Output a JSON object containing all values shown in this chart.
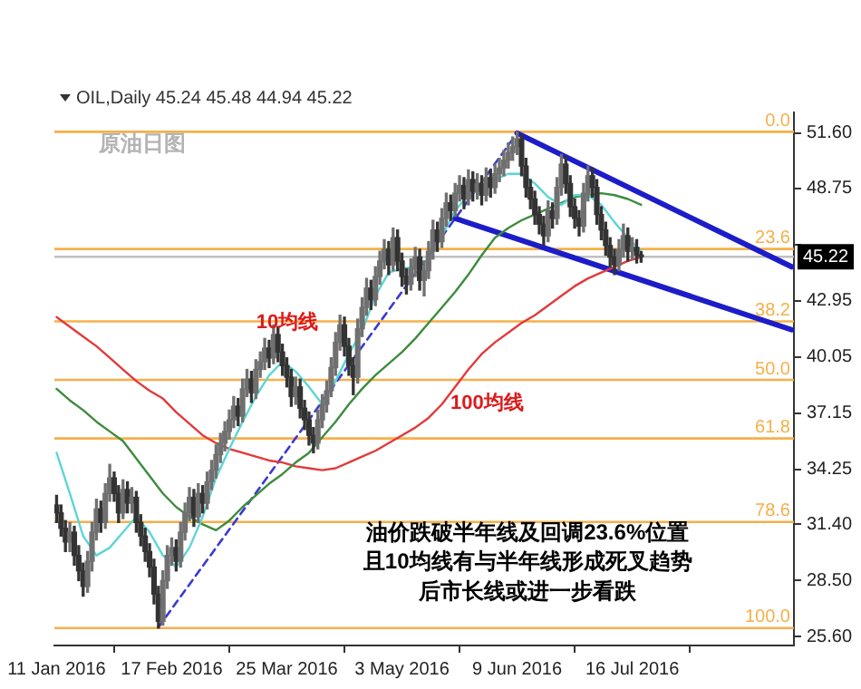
{
  "chart_data": {
    "type": "candlestick",
    "subtitle": "OIL,Daily 45.24 45.48 44.94 45.22",
    "colors": [
      "#333333",
      "#333333",
      "#333333",
      "#707070",
      "#333333",
      "#333333",
      "#333333",
      "#707070",
      "#707070",
      "#707070",
      "#333333",
      "#707070",
      "#707070",
      "#333333",
      "#333333",
      "#707070",
      "#333333",
      "#707070",
      "#333333",
      "#333333",
      "#333333",
      "#333333",
      "#333333",
      "#333333",
      "#707070",
      "#707070",
      "#707070",
      "#333333",
      "#707070",
      "#707070",
      "#707070",
      "#333333",
      "#707070",
      "#333333",
      "#707070",
      "#707070",
      "#707070",
      "#707070",
      "#707070",
      "#707070",
      "#707070",
      "#333333",
      "#707070",
      "#707070",
      "#333333",
      "#707070",
      "#707070",
      "#707070",
      "#333333",
      "#707070",
      "#333333",
      "#333333",
      "#333333",
      "#333333",
      "#707070",
      "#333333",
      "#333333",
      "#333333",
      "#333333",
      "#707070",
      "#707070",
      "#707070",
      "#707070",
      "#707070",
      "#707070",
      "#333333",
      "#333333",
      "#333333",
      "#707070",
      "#707070",
      "#707070",
      "#333333",
      "#707070",
      "#707070",
      "#707070",
      "#333333",
      "#707070",
      "#333333",
      "#333333",
      "#333333",
      "#707070",
      "#707070",
      "#333333",
      "#707070",
      "#707070",
      "#707070",
      "#333333",
      "#707070",
      "#707070",
      "#333333",
      "#707070",
      "#707070",
      "#333333",
      "#707070",
      "#333333",
      "#707070",
      "#333333",
      "#707070",
      "#333333",
      "#707070",
      "#707070",
      "#707070",
      "#707070",
      "#707070",
      "#707070",
      "#333333",
      "#333333",
      "#333333",
      "#333333",
      "#333333",
      "#333333",
      "#707070",
      "#333333",
      "#707070",
      "#707070",
      "#333333",
      "#333333",
      "#333333",
      "#333333",
      "#707070",
      "#707070",
      "#333333",
      "#333333",
      "#333333",
      "#333333",
      "#333333",
      "#333333",
      "#707070",
      "#707070",
      "#333333",
      "#707070",
      "#333333",
      "#333333",
      null,
      null,
      null,
      null,
      null,
      null,
      null,
      null,
      null,
      null,
      null,
      null,
      null,
      null,
      null,
      null,
      null,
      null,
      null,
      null,
      null,
      null,
      null,
      null,
      null,
      null,
      null,
      null,
      null,
      null,
      null,
      null,
      null,
      null
    ],
    "categories": [
      "11 Jan 2016",
      null,
      null,
      null,
      null,
      null,
      null,
      null,
      null,
      null,
      null,
      null,
      null,
      null,
      null,
      null,
      null,
      null,
      null,
      null,
      null,
      null,
      null,
      null,
      null,
      null,
      "17 Feb 2016",
      null,
      null,
      null,
      null,
      null,
      null,
      null,
      null,
      null,
      null,
      null,
      null,
      null,
      null,
      null,
      null,
      null,
      null,
      null,
      null,
      null,
      null,
      null,
      null,
      null,
      "25 Mar 2016",
      null,
      null,
      null,
      null,
      null,
      null,
      null,
      null,
      null,
      null,
      null,
      null,
      null,
      null,
      null,
      null,
      null,
      null,
      null,
      null,
      null,
      null,
      null,
      null,
      null,
      "3 May 2016",
      null,
      null,
      null,
      null,
      null,
      null,
      null,
      null,
      null,
      null,
      null,
      null,
      null,
      null,
      null,
      null,
      null,
      null,
      null,
      null,
      null,
      null,
      null,
      null,
      null,
      "9 Jun 2016",
      null,
      null,
      null,
      null,
      null,
      null,
      null,
      null,
      null,
      null,
      null,
      null,
      null,
      null,
      null,
      null,
      null,
      null,
      null,
      null,
      null,
      null,
      null,
      null,
      null,
      "16 Jul 2016",
      null,
      null,
      null,
      null,
      null,
      null,
      null,
      null,
      null,
      null,
      null,
      null,
      null,
      null,
      null,
      null,
      null,
      null,
      null,
      null,
      null,
      null,
      null,
      null,
      null,
      null,
      null,
      null,
      null,
      null,
      null,
      null,
      null,
      null,
      null,
      null
    ],
    "ohlc": [
      [
        32.4,
        32.9,
        31.5,
        32.0
      ],
      [
        32.0,
        32.4,
        30.8,
        31.2
      ],
      [
        31.2,
        31.6,
        30.0,
        30.5
      ],
      [
        30.5,
        31.5,
        30.0,
        31.0
      ],
      [
        31.0,
        31.3,
        29.3,
        29.8
      ],
      [
        29.8,
        30.3,
        28.5,
        29.0
      ],
      [
        29.0,
        29.4,
        27.7,
        28.2
      ],
      [
        28.2,
        30.0,
        27.9,
        29.5
      ],
      [
        29.5,
        31.5,
        29.0,
        31.0
      ],
      [
        31.0,
        32.7,
        30.6,
        32.2
      ],
      [
        32.2,
        32.6,
        31.0,
        31.5
      ],
      [
        31.5,
        33.5,
        31.2,
        33.0
      ],
      [
        33.0,
        34.5,
        32.6,
        33.8
      ],
      [
        33.8,
        34.1,
        32.6,
        33.0
      ],
      [
        33.0,
        33.4,
        31.5,
        32.0
      ],
      [
        32.0,
        33.7,
        31.7,
        33.2
      ],
      [
        33.2,
        33.6,
        32.0,
        32.5
      ],
      [
        32.5,
        33.3,
        32.0,
        32.8
      ],
      [
        32.8,
        33.1,
        31.0,
        31.5
      ],
      [
        31.5,
        31.9,
        30.3,
        30.8
      ],
      [
        30.8,
        31.2,
        29.5,
        30.0
      ],
      [
        30.0,
        30.4,
        28.7,
        29.2
      ],
      [
        29.2,
        29.6,
        27.3,
        27.8
      ],
      [
        27.8,
        28.2,
        26.05,
        26.4
      ],
      [
        26.4,
        29.0,
        26.2,
        28.5
      ],
      [
        28.5,
        30.3,
        28.1,
        29.8
      ],
      [
        29.8,
        30.7,
        29.3,
        30.2
      ],
      [
        30.2,
        30.6,
        29.0,
        29.5
      ],
      [
        29.5,
        31.5,
        29.2,
        31.0
      ],
      [
        31.0,
        32.5,
        30.6,
        32.0
      ],
      [
        32.0,
        33.3,
        31.6,
        32.8
      ],
      [
        32.8,
        33.2,
        31.3,
        31.8
      ],
      [
        31.8,
        33.5,
        31.5,
        33.0
      ],
      [
        33.0,
        33.4,
        32.0,
        32.5
      ],
      [
        32.5,
        34.1,
        32.2,
        33.6
      ],
      [
        33.6,
        34.7,
        33.2,
        34.2
      ],
      [
        34.2,
        35.5,
        33.8,
        35.0
      ],
      [
        35.0,
        36.1,
        34.6,
        35.6
      ],
      [
        35.6,
        36.7,
        35.2,
        36.2
      ],
      [
        36.2,
        37.3,
        35.8,
        36.8
      ],
      [
        36.8,
        38.0,
        36.4,
        37.5
      ],
      [
        37.5,
        37.9,
        36.5,
        37.0
      ],
      [
        37.0,
        38.9,
        36.7,
        38.4
      ],
      [
        38.4,
        39.4,
        38.0,
        38.9
      ],
      [
        38.9,
        39.3,
        37.7,
        38.2
      ],
      [
        38.2,
        39.9,
        37.9,
        39.4
      ],
      [
        39.4,
        40.3,
        39.0,
        39.8
      ],
      [
        39.8,
        41.0,
        39.4,
        40.5
      ],
      [
        40.5,
        40.9,
        39.5,
        40.0
      ],
      [
        40.0,
        41.7,
        39.7,
        41.2
      ],
      [
        41.2,
        41.6,
        39.8,
        40.3
      ],
      [
        40.3,
        40.7,
        39.1,
        39.6
      ],
      [
        39.6,
        40.0,
        38.5,
        39.0
      ],
      [
        39.0,
        39.4,
        37.5,
        38.0
      ],
      [
        38.0,
        39.0,
        37.6,
        38.5
      ],
      [
        38.5,
        38.9,
        36.9,
        37.4
      ],
      [
        37.4,
        37.8,
        36.3,
        36.8
      ],
      [
        36.8,
        37.2,
        35.5,
        36.0
      ],
      [
        36.0,
        36.4,
        35.1,
        35.6
      ],
      [
        35.6,
        37.3,
        35.3,
        36.8
      ],
      [
        36.8,
        38.1,
        36.4,
        37.6
      ],
      [
        37.6,
        38.8,
        37.2,
        38.3
      ],
      [
        38.3,
        40.0,
        38.0,
        39.5
      ],
      [
        39.5,
        41.3,
        39.1,
        40.8
      ],
      [
        40.8,
        42.2,
        40.4,
        41.7
      ],
      [
        41.7,
        42.1,
        40.1,
        40.6
      ],
      [
        40.6,
        41.0,
        39.1,
        39.6
      ],
      [
        39.6,
        40.0,
        38.1,
        39.0
      ],
      [
        39.0,
        42.0,
        38.7,
        41.5
      ],
      [
        41.5,
        43.1,
        41.1,
        42.6
      ],
      [
        42.6,
        44.1,
        42.2,
        43.6
      ],
      [
        43.6,
        44.0,
        42.5,
        43.0
      ],
      [
        43.0,
        44.7,
        42.7,
        44.2
      ],
      [
        44.2,
        45.5,
        43.8,
        45.0
      ],
      [
        45.0,
        46.1,
        44.6,
        45.6
      ],
      [
        45.6,
        46.0,
        44.3,
        44.8
      ],
      [
        44.8,
        46.7,
        44.5,
        46.2
      ],
      [
        46.2,
        46.6,
        44.5,
        45.0
      ],
      [
        45.0,
        45.4,
        43.7,
        44.2
      ],
      [
        44.2,
        44.6,
        43.3,
        43.8
      ],
      [
        43.8,
        45.1,
        43.5,
        44.6
      ],
      [
        44.6,
        45.7,
        44.2,
        45.2
      ],
      [
        45.2,
        45.6,
        43.5,
        44.0
      ],
      [
        44.0,
        45.0,
        43.2,
        44.5
      ],
      [
        44.5,
        46.0,
        44.1,
        45.5
      ],
      [
        45.5,
        47.1,
        45.1,
        46.6
      ],
      [
        46.6,
        47.0,
        45.5,
        46.0
      ],
      [
        46.0,
        47.7,
        45.7,
        47.2
      ],
      [
        47.2,
        48.5,
        46.8,
        48.0
      ],
      [
        48.0,
        48.4,
        47.1,
        47.6
      ],
      [
        47.6,
        49.0,
        47.3,
        48.5
      ],
      [
        48.5,
        49.4,
        48.1,
        48.9
      ],
      [
        48.9,
        49.3,
        47.7,
        48.2
      ],
      [
        48.2,
        49.7,
        47.9,
        49.2
      ],
      [
        49.2,
        49.6,
        48.1,
        48.6
      ],
      [
        48.6,
        49.5,
        48.2,
        49.0
      ],
      [
        49.0,
        49.4,
        47.9,
        48.4
      ],
      [
        48.4,
        49.8,
        48.1,
        49.3
      ],
      [
        49.3,
        49.7,
        48.3,
        48.8
      ],
      [
        48.8,
        50.0,
        48.5,
        49.5
      ],
      [
        49.5,
        50.3,
        49.1,
        49.8
      ],
      [
        49.8,
        50.7,
        49.4,
        50.2
      ],
      [
        50.2,
        51.1,
        49.8,
        50.6
      ],
      [
        50.6,
        51.4,
        50.2,
        50.9
      ],
      [
        50.9,
        51.67,
        50.5,
        51.3
      ],
      [
        51.3,
        51.5,
        49.4,
        49.9
      ],
      [
        49.9,
        50.3,
        48.3,
        48.8
      ],
      [
        48.8,
        49.2,
        47.7,
        48.2
      ],
      [
        48.2,
        48.6,
        46.9,
        47.4
      ],
      [
        47.4,
        47.8,
        46.4,
        46.9
      ],
      [
        46.9,
        47.3,
        45.8,
        46.3
      ],
      [
        46.3,
        48.1,
        46.0,
        47.6
      ],
      [
        47.6,
        48.0,
        46.7,
        47.2
      ],
      [
        47.2,
        49.3,
        46.9,
        48.8
      ],
      [
        48.8,
        50.5,
        48.4,
        50.0
      ],
      [
        50.0,
        50.4,
        48.5,
        49.0
      ],
      [
        49.0,
        49.4,
        47.3,
        47.8
      ],
      [
        47.8,
        48.2,
        46.7,
        47.2
      ],
      [
        47.2,
        47.6,
        46.3,
        46.8
      ],
      [
        46.8,
        49.0,
        46.5,
        48.5
      ],
      [
        48.5,
        49.9,
        48.1,
        49.4
      ],
      [
        49.4,
        49.8,
        48.3,
        48.8
      ],
      [
        48.8,
        49.2,
        46.9,
        47.4
      ],
      [
        47.4,
        47.8,
        46.1,
        46.6
      ],
      [
        46.6,
        47.0,
        45.3,
        45.8
      ],
      [
        45.8,
        46.2,
        44.7,
        45.2
      ],
      [
        45.2,
        45.6,
        44.3,
        44.8
      ],
      [
        44.8,
        46.1,
        44.5,
        45.6
      ],
      [
        45.6,
        46.9,
        45.2,
        46.3
      ],
      [
        46.3,
        46.7,
        45.0,
        45.5
      ],
      [
        45.5,
        46.2,
        45.1,
        45.7
      ],
      [
        45.7,
        46.1,
        44.9,
        45.3
      ],
      [
        45.24,
        45.48,
        44.94,
        45.22
      ],
      null,
      null,
      null,
      null,
      null,
      null,
      null,
      null,
      null,
      null,
      null,
      null,
      null,
      null,
      null,
      null,
      null,
      null,
      null,
      null,
      null,
      null,
      null,
      null,
      null,
      null,
      null,
      null,
      null,
      null,
      null,
      null,
      null,
      null
    ],
    "series": [
      {
        "type": "line",
        "name": "10均线",
        "color": "#5cd6d6",
        "values": [
          35.1,
          null,
          null,
          33.0,
          null,
          null,
          30.8,
          null,
          null,
          29.8,
          null,
          null,
          30.2,
          null,
          null,
          31.0,
          null,
          null,
          31.8,
          null,
          null,
          31.0,
          null,
          null,
          29.8,
          null,
          null,
          29.2,
          null,
          null,
          30.2,
          null,
          null,
          31.8,
          null,
          null,
          33.8,
          null,
          null,
          35.3,
          null,
          null,
          36.7,
          null,
          null,
          38.0,
          null,
          null,
          39.1,
          null,
          null,
          39.8,
          null,
          null,
          39.3,
          null,
          null,
          38.5,
          null,
          null,
          37.6,
          null,
          null,
          38.8,
          null,
          null,
          40.2,
          null,
          null,
          41.4,
          null,
          null,
          43.2,
          null,
          null,
          44.4,
          null,
          null,
          44.6,
          null,
          null,
          44.7,
          null,
          null,
          45.1,
          null,
          null,
          46.3,
          null,
          null,
          47.6,
          null,
          null,
          48.4,
          null,
          null,
          48.8,
          null,
          null,
          49.2,
          null,
          null,
          49.5,
          null,
          null,
          49.5,
          null,
          null,
          49.0,
          null,
          null,
          48.3,
          null,
          null,
          47.9,
          null,
          null,
          48.4,
          null,
          null,
          48.4,
          null,
          null,
          47.9,
          null,
          null,
          47.0,
          null,
          null,
          46.2,
          null,
          null,
          45.5,
          null,
          null,
          null,
          null,
          null,
          null,
          null,
          null,
          null,
          null,
          null,
          null,
          null,
          null,
          null,
          null,
          null,
          null,
          null,
          null,
          null,
          null,
          null,
          null,
          null,
          null,
          null,
          null,
          null,
          null,
          null,
          null,
          null,
          null
        ]
      },
      {
        "type": "line",
        "color": "#3d8c3d",
        "values": [
          38.4,
          null,
          null,
          37.8,
          null,
          null,
          37.3,
          null,
          null,
          36.7,
          null,
          null,
          36.2,
          null,
          null,
          35.7,
          null,
          null,
          34.8,
          null,
          null,
          33.9,
          null,
          null,
          33.0,
          null,
          null,
          32.3,
          null,
          null,
          31.8,
          null,
          null,
          31.4,
          null,
          null,
          31.1,
          null,
          null,
          31.6,
          null,
          null,
          32.3,
          null,
          null,
          32.9,
          null,
          null,
          33.5,
          null,
          null,
          34.0,
          null,
          null,
          34.6,
          null,
          null,
          35.1,
          null,
          null,
          35.9,
          null,
          null,
          36.7,
          null,
          null,
          37.6,
          null,
          null,
          38.4,
          null,
          null,
          39.1,
          null,
          null,
          39.7,
          null,
          null,
          40.3,
          null,
          null,
          41.0,
          null,
          null,
          41.8,
          null,
          null,
          42.6,
          null,
          null,
          43.4,
          null,
          null,
          44.3,
          null,
          null,
          45.3,
          null,
          null,
          46.2,
          null,
          null,
          46.7,
          null,
          null,
          47.1,
          null,
          null,
          47.4,
          null,
          null,
          47.7,
          null,
          null,
          48.0,
          null,
          null,
          48.3,
          null,
          null,
          null,
          null,
          null,
          48.5,
          null,
          null,
          48.4,
          null,
          null,
          48.2,
          null,
          null,
          47.9,
          null,
          null,
          null,
          null,
          null,
          null,
          null,
          null,
          null,
          null,
          null,
          null,
          null,
          null,
          null,
          null,
          null,
          null,
          null,
          null,
          null,
          null,
          null,
          null,
          null,
          null,
          null,
          null,
          null,
          null,
          null,
          null,
          null,
          null
        ]
      },
      {
        "type": "line",
        "name": "100均线",
        "color": "#e23a3a",
        "values": [
          42.1,
          null,
          null,
          41.6,
          null,
          null,
          41.1,
          null,
          null,
          40.6,
          null,
          null,
          40.0,
          null,
          null,
          39.4,
          null,
          null,
          38.8,
          null,
          null,
          38.3,
          null,
          null,
          37.9,
          null,
          null,
          37.2,
          null,
          null,
          36.6,
          null,
          null,
          36.0,
          null,
          null,
          35.6,
          null,
          null,
          35.3,
          null,
          null,
          35.1,
          null,
          null,
          34.9,
          null,
          null,
          34.7,
          null,
          null,
          34.6,
          null,
          null,
          34.4,
          null,
          null,
          34.3,
          null,
          null,
          34.2,
          null,
          null,
          34.3,
          null,
          null,
          34.6,
          null,
          null,
          34.9,
          null,
          null,
          35.2,
          null,
          null,
          35.6,
          null,
          null,
          36.0,
          null,
          null,
          36.4,
          null,
          null,
          36.9,
          null,
          null,
          37.6,
          null,
          null,
          38.5,
          null,
          null,
          39.4,
          null,
          null,
          40.2,
          null,
          null,
          40.8,
          null,
          null,
          41.3,
          null,
          null,
          41.8,
          null,
          null,
          42.2,
          null,
          null,
          42.7,
          null,
          null,
          43.2,
          null,
          null,
          43.7,
          null,
          null,
          44.1,
          null,
          null,
          44.4,
          null,
          null,
          44.7,
          null,
          null,
          45.0,
          null,
          null,
          45.2,
          null,
          null,
          null,
          null,
          null,
          null,
          null,
          null,
          null,
          null,
          null,
          null,
          null,
          null,
          null,
          null,
          null,
          null,
          null,
          null,
          null,
          null,
          null,
          null,
          null,
          null,
          null,
          null,
          null,
          null,
          null,
          null,
          null,
          null
        ]
      },
      {
        "type": "line",
        "color": "#1c1cc8",
        "values": [
          null,
          null,
          null,
          null,
          null,
          null,
          null,
          null,
          null,
          null,
          null,
          null,
          null,
          null,
          null,
          null,
          null,
          null,
          null,
          null,
          null,
          null,
          null,
          null,
          null,
          null,
          null,
          null,
          null,
          null,
          null,
          null,
          null,
          null,
          null,
          null,
          null,
          null,
          null,
          null,
          null,
          null,
          null,
          null,
          null,
          null,
          null,
          null,
          null,
          null,
          null,
          null,
          null,
          null,
          null,
          null,
          null,
          null,
          null,
          null,
          null,
          null,
          null,
          null,
          null,
          null,
          null,
          null,
          null,
          null,
          null,
          null,
          null,
          null,
          null,
          null,
          null,
          null,
          null,
          null,
          null,
          null,
          null,
          null,
          null,
          null,
          null,
          null,
          null,
          null,
          null,
          null,
          null,
          null,
          null,
          null,
          null,
          null,
          null,
          null,
          null,
          null,
          null,
          null,
          51.6,
          null,
          null,
          null,
          null,
          null,
          null,
          null,
          null,
          null,
          null,
          null,
          null,
          null,
          null,
          null,
          null,
          null,
          null,
          null,
          null,
          null,
          null,
          null,
          null,
          null,
          null,
          null,
          null,
          null,
          null,
          null,
          null,
          null,
          null,
          null,
          null,
          null,
          null,
          null,
          null,
          null,
          null,
          null,
          null,
          null,
          null,
          null,
          null,
          null,
          null,
          null,
          null,
          null,
          null,
          null,
          null,
          null,
          null,
          null,
          null,
          null,
          44.7
        ]
      },
      {
        "type": "line",
        "color": "#1c1cc8",
        "values": [
          null,
          null,
          null,
          null,
          null,
          null,
          null,
          null,
          null,
          null,
          null,
          null,
          null,
          null,
          null,
          null,
          null,
          null,
          null,
          null,
          null,
          null,
          null,
          null,
          null,
          null,
          null,
          null,
          null,
          null,
          null,
          null,
          null,
          null,
          null,
          null,
          null,
          null,
          null,
          null,
          null,
          null,
          null,
          null,
          null,
          null,
          null,
          null,
          null,
          null,
          null,
          null,
          null,
          null,
          null,
          null,
          null,
          null,
          null,
          null,
          null,
          null,
          null,
          null,
          null,
          null,
          null,
          null,
          null,
          null,
          null,
          null,
          null,
          null,
          null,
          null,
          null,
          null,
          null,
          null,
          null,
          null,
          null,
          null,
          null,
          null,
          null,
          null,
          null,
          null,
          47.2,
          null,
          null,
          null,
          null,
          null,
          null,
          null,
          null,
          null,
          null,
          null,
          null,
          null,
          null,
          null,
          null,
          null,
          null,
          null,
          null,
          null,
          null,
          null,
          null,
          null,
          null,
          null,
          null,
          null,
          null,
          null,
          null,
          null,
          null,
          null,
          null,
          null,
          null,
          null,
          null,
          null,
          null,
          null,
          null,
          null,
          null,
          null,
          null,
          null,
          null,
          null,
          null,
          null,
          null,
          null,
          null,
          null,
          null,
          null,
          null,
          null,
          null,
          null,
          null,
          null,
          null,
          null,
          null,
          null,
          null,
          null,
          null,
          null,
          null,
          null,
          41.45
        ]
      },
      {
        "type": "line",
        "color": "#3a3ad0",
        "line_style": "dashed",
        "values": [
          null,
          null,
          null,
          null,
          null,
          null,
          null,
          null,
          null,
          null,
          null,
          null,
          null,
          null,
          null,
          null,
          null,
          null,
          null,
          null,
          null,
          null,
          null,
          26.1,
          null,
          null,
          null,
          null,
          null,
          null,
          null,
          null,
          null,
          null,
          null,
          null,
          null,
          null,
          null,
          null,
          null,
          null,
          null,
          null,
          null,
          null,
          null,
          null,
          null,
          null,
          null,
          null,
          null,
          null,
          null,
          null,
          null,
          null,
          null,
          null,
          null,
          null,
          null,
          null,
          null,
          null,
          null,
          null,
          null,
          null,
          null,
          null,
          null,
          null,
          null,
          null,
          null,
          null,
          null,
          null,
          null,
          null,
          null,
          null,
          null,
          null,
          null,
          null,
          null,
          null,
          null,
          null,
          null,
          null,
          null,
          null,
          null,
          null,
          null,
          null,
          null,
          null,
          null,
          null,
          51.6,
          null,
          null,
          null,
          null,
          null,
          null,
          null,
          null,
          null,
          null,
          null,
          null,
          null,
          null,
          null,
          null,
          null,
          null,
          null,
          null,
          null,
          null,
          null,
          null,
          null,
          null,
          null,
          null,
          null,
          null,
          null,
          null,
          null,
          null,
          null,
          null,
          null,
          null,
          null,
          null,
          null,
          null,
          null,
          null,
          null,
          null,
          null,
          null,
          null,
          null,
          null,
          null,
          null,
          null,
          null,
          null,
          null,
          null,
          null,
          null,
          null,
          null
        ]
      }
    ],
    "ylim": [
      25.15,
      52.67
    ],
    "yticks": [
      {
        "value": 25.6,
        "label": "25.60"
      },
      {
        "value": 28.5,
        "label": "28.50"
      },
      {
        "value": 31.4,
        "label": "31.40"
      },
      34.25,
      37.15,
      40.05,
      42.95,
      {
        "value": 45.85,
        "label": null
      },
      48.75,
      {
        "value": 51.6,
        "label": "51.60"
      }
    ],
    "ref_lines": [
      {
        "axis": "y",
        "value": 51.67,
        "color": "#f5b04a"
      },
      {
        "axis": "y",
        "value": 45.62,
        "color": "#f5b04a"
      },
      {
        "axis": "y",
        "value": 41.88,
        "color": "#f5b04a"
      },
      {
        "axis": "y",
        "value": 38.86,
        "color": "#f5b04a"
      },
      {
        "axis": "y",
        "value": 35.84,
        "color": "#f5b04a"
      },
      {
        "axis": "y",
        "value": 31.53,
        "color": "#f5b04a"
      },
      {
        "axis": "y",
        "value": 26.05,
        "color": "#f5b04a"
      },
      {
        "axis": "y",
        "value": 45.22,
        "label": "45.22",
        "color": "#c0c0c0"
      }
    ],
    "annotations": [
      "原油日图",
      "油价跌破半年线及回调23.6%位置",
      "且10均线有与半年线形成死叉趋势",
      "后市长线或进一步看跌",
      {
        "text": "0.0",
        "y": 51.67
      },
      {
        "text": "23.6",
        "y": 45.62
      },
      {
        "text": "38.2",
        "y": 41.88
      },
      {
        "text": "50.0",
        "y": 38.86
      },
      {
        "text": "61.8",
        "y": 35.84
      },
      {
        "text": "78.6",
        "y": 31.53
      },
      {
        "text": "100.0",
        "y": 26.05
      }
    ],
    "grid": false,
    "legend": false
  }
}
